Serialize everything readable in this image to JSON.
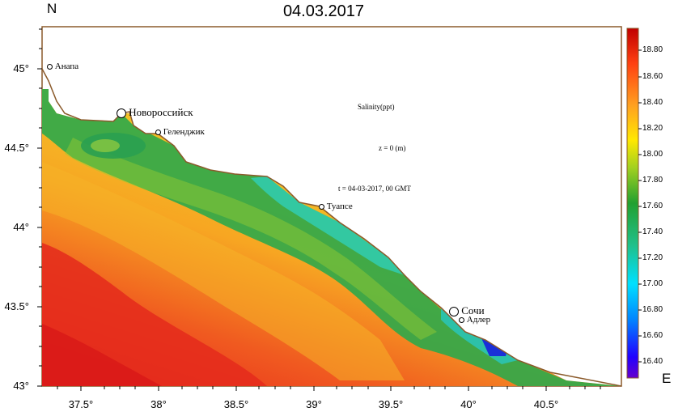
{
  "title": "04.03.2017",
  "north_label": "N",
  "east_label": "E",
  "annotations": {
    "variable": "Salinity(ppt)",
    "depth": "z = 0 (m)",
    "time": "t = 04-03-2017, 00 GMT"
  },
  "lat_ticks": [
    "45°",
    "44.5°",
    "44°",
    "43.5°",
    "43°"
  ],
  "lon_ticks": [
    "37.5°",
    "38°",
    "38.5°",
    "39°",
    "39.5°",
    "40°",
    "40.5°"
  ],
  "colorbar_ticks": [
    "18.80",
    "18.60",
    "18.40",
    "18.20",
    "18.00",
    "17.80",
    "17.60",
    "17.40",
    "17.20",
    "17.00",
    "16.80",
    "16.60",
    "16.40"
  ],
  "cities": [
    {
      "name": "Анапа"
    },
    {
      "name": "Новороссийск"
    },
    {
      "name": "Геленджик"
    },
    {
      "name": "Туапсе"
    },
    {
      "name": "Сочи"
    },
    {
      "name": "Адлер"
    }
  ],
  "colors": {
    "coast": "#8b5a2b",
    "sea_high": "#e8281e",
    "sea_mid": "#f5b020",
    "sea_low": "#1fa44a",
    "fresh": "#2bd6d0",
    "freshest": "#1a1acc"
  },
  "map_extent": {
    "lon": [
      37.23,
      40.98
    ],
    "lat": [
      43.0,
      45.25
    ]
  }
}
